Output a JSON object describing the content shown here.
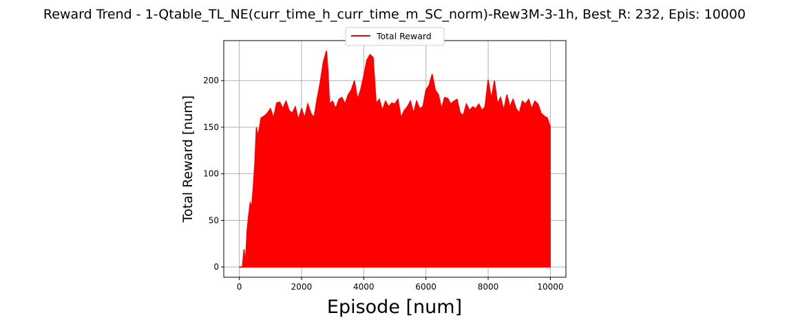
{
  "chart_data": {
    "type": "line",
    "title": "Reward Trend - 1-Qtable_TL_NE(curr_time_h_curr_time_m_SC_norm)-Rew3M-3-1h, Best_R: 232, Epis: 10000",
    "xlabel": "Episode [num]",
    "ylabel": "Total Reward [num]",
    "xlim": [
      -500,
      10500
    ],
    "ylim": [
      -11,
      243
    ],
    "xticks": [
      0,
      2000,
      4000,
      6000,
      8000,
      10000
    ],
    "yticks": [
      0,
      50,
      100,
      150,
      200
    ],
    "grid": true,
    "legend_position": "upper center",
    "series": [
      {
        "name": "Total Reward",
        "color": "#ff0000",
        "lower_value": 0,
        "x": [
          0,
          100,
          150,
          200,
          250,
          300,
          350,
          400,
          450,
          500,
          550,
          600,
          700,
          800,
          900,
          1000,
          1100,
          1200,
          1300,
          1400,
          1500,
          1600,
          1700,
          1800,
          1900,
          2000,
          2100,
          2200,
          2300,
          2400,
          2500,
          2600,
          2700,
          2800,
          2850,
          2900,
          3000,
          3100,
          3200,
          3300,
          3400,
          3500,
          3600,
          3700,
          3800,
          3900,
          4000,
          4100,
          4200,
          4300,
          4400,
          4500,
          4600,
          4700,
          4800,
          4900,
          5000,
          5100,
          5200,
          5300,
          5400,
          5500,
          5600,
          5700,
          5800,
          5900,
          6000,
          6100,
          6200,
          6300,
          6400,
          6500,
          6600,
          6700,
          6800,
          6900,
          7000,
          7100,
          7200,
          7300,
          7400,
          7500,
          7600,
          7700,
          7800,
          7900,
          8000,
          8100,
          8200,
          8300,
          8400,
          8500,
          8600,
          8700,
          8800,
          8900,
          9000,
          9100,
          9200,
          9300,
          9400,
          9500,
          9600,
          9700,
          9800,
          9900,
          10000
        ],
        "y": [
          0,
          0,
          19,
          5,
          39,
          55,
          69,
          65,
          86,
          112,
          150,
          140,
          160,
          162,
          165,
          170,
          160,
          176,
          177,
          170,
          178,
          168,
          165,
          172,
          158,
          170,
          160,
          175,
          165,
          160,
          180,
          198,
          220,
          232,
          210,
          175,
          178,
          170,
          180,
          182,
          175,
          185,
          190,
          200,
          180,
          190,
          205,
          222,
          228,
          225,
          175,
          180,
          168,
          178,
          172,
          176,
          175,
          180,
          160,
          168,
          172,
          178,
          165,
          178,
          170,
          172,
          190,
          195,
          207,
          190,
          185,
          170,
          182,
          181,
          175,
          178,
          180,
          165,
          163,
          175,
          168,
          172,
          170,
          175,
          168,
          172,
          201,
          180,
          200,
          175,
          182,
          168,
          185,
          172,
          180,
          170,
          165,
          178,
          175,
          180,
          170,
          178,
          175,
          165,
          162,
          160,
          150
        ]
      }
    ]
  }
}
